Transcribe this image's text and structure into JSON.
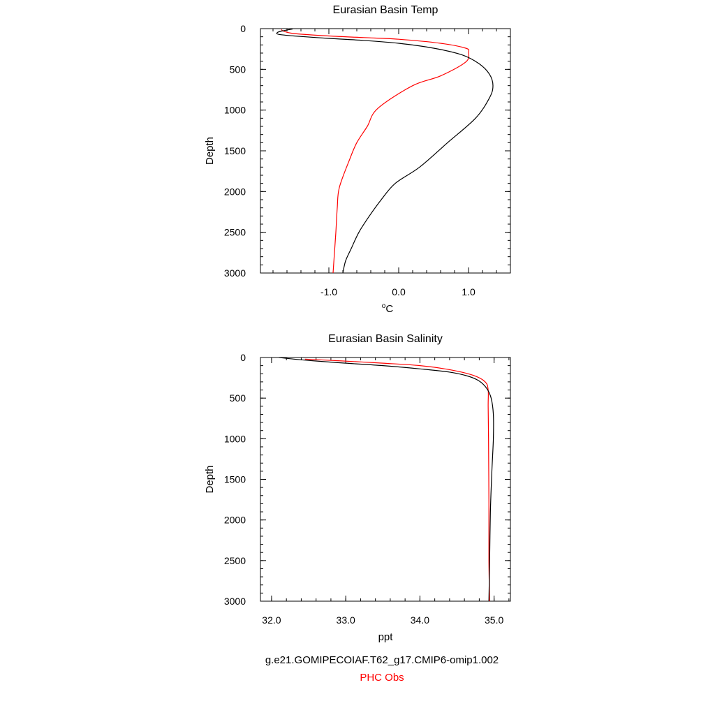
{
  "chart_data": [
    {
      "type": "line",
      "title": "Eurasian Basin Temp",
      "xlabel": "°C",
      "ylabel": "Depth",
      "xlim": [
        -1.98,
        1.6
      ],
      "ylim": [
        3000,
        0
      ],
      "y_inverted": true,
      "xticks": [
        -1.0,
        0.0,
        1.0
      ],
      "xtick_labels": [
        "-1.0",
        "0.0",
        "1.0"
      ],
      "yticks": [
        0,
        500,
        1000,
        1500,
        2000,
        2500,
        3000
      ],
      "ytick_labels": [
        "0",
        "500",
        "1000",
        "1500",
        "2000",
        "2500",
        "3000"
      ],
      "grid": false,
      "series": [
        {
          "name": "g.e21.GOMIPECOIAF.T62_g17.CMIP6-omip1.002",
          "color": "#000000",
          "x": [
            -1.52,
            -1.68,
            -1.74,
            -1.72,
            -1.5,
            -1.0,
            -0.5,
            0.0,
            0.5,
            0.9,
            1.15,
            1.3,
            1.35,
            1.3,
            1.1,
            0.7,
            0.3,
            -0.05,
            -0.25,
            -0.42,
            -0.57,
            -0.68,
            -0.76,
            -0.8
          ],
          "y": [
            5,
            30,
            50,
            70,
            90,
            120,
            145,
            180,
            240,
            320,
            430,
            560,
            700,
            850,
            1100,
            1400,
            1700,
            1900,
            2100,
            2300,
            2500,
            2700,
            2850,
            3000
          ]
        },
        {
          "name": "PHC Obs",
          "color": "#ff0000",
          "x": [
            -1.68,
            -1.65,
            -1.5,
            -1.0,
            -0.5,
            0.0,
            0.6,
            0.96,
            1.0,
            0.96,
            0.6,
            0.2,
            -0.3,
            -0.45,
            -0.6,
            -0.7,
            -0.85,
            -0.88,
            -0.9,
            -0.92,
            -0.94
          ],
          "y": [
            10,
            30,
            60,
            90,
            110,
            130,
            180,
            240,
            290,
            410,
            580,
            700,
            980,
            1200,
            1400,
            1600,
            1950,
            2200,
            2500,
            2750,
            3000
          ]
        }
      ]
    },
    {
      "type": "line",
      "title": "Eurasian Basin Salinity",
      "xlabel": "ppt",
      "ylabel": "Depth",
      "xlim": [
        31.85,
        35.22
      ],
      "ylim": [
        3000,
        0
      ],
      "y_inverted": true,
      "xticks": [
        32.0,
        33.0,
        34.0,
        35.0
      ],
      "xtick_labels": [
        "32.0",
        "33.0",
        "34.0",
        "35.0"
      ],
      "yticks": [
        0,
        500,
        1000,
        1500,
        2000,
        2500,
        3000
      ],
      "ytick_labels": [
        "0",
        "500",
        "1000",
        "1500",
        "2000",
        "2500",
        "3000"
      ],
      "grid": false,
      "series": [
        {
          "name": "g.e21.GOMIPECOIAF.T62_g17.CMIP6-omip1.002",
          "color": "#000000",
          "x": [
            32.1,
            32.3,
            32.55,
            33.0,
            33.5,
            34.0,
            34.4,
            34.65,
            34.8,
            34.9,
            34.96,
            34.99,
            34.99,
            34.97,
            34.95,
            34.94,
            34.93
          ],
          "y": [
            0,
            20,
            40,
            70,
            100,
            140,
            180,
            230,
            290,
            380,
            500,
            700,
            1000,
            1400,
            1900,
            2500,
            3000
          ]
        },
        {
          "name": "PHC Obs",
          "color": "#ff0000",
          "x": [
            32.45,
            32.9,
            33.5,
            34.0,
            34.4,
            34.72,
            34.88,
            34.92,
            34.92,
            34.925,
            34.93,
            34.93,
            34.94
          ],
          "y": [
            20,
            40,
            70,
            100,
            150,
            220,
            300,
            400,
            600,
            1000,
            1800,
            2500,
            3000
          ]
        }
      ]
    }
  ],
  "legend": {
    "model_label": "g.e21.GOMIPECOIAF.T62_g17.CMIP6-omip1.002",
    "model_color": "#000000",
    "obs_label": "PHC Obs",
    "obs_color": "#ff0000"
  }
}
